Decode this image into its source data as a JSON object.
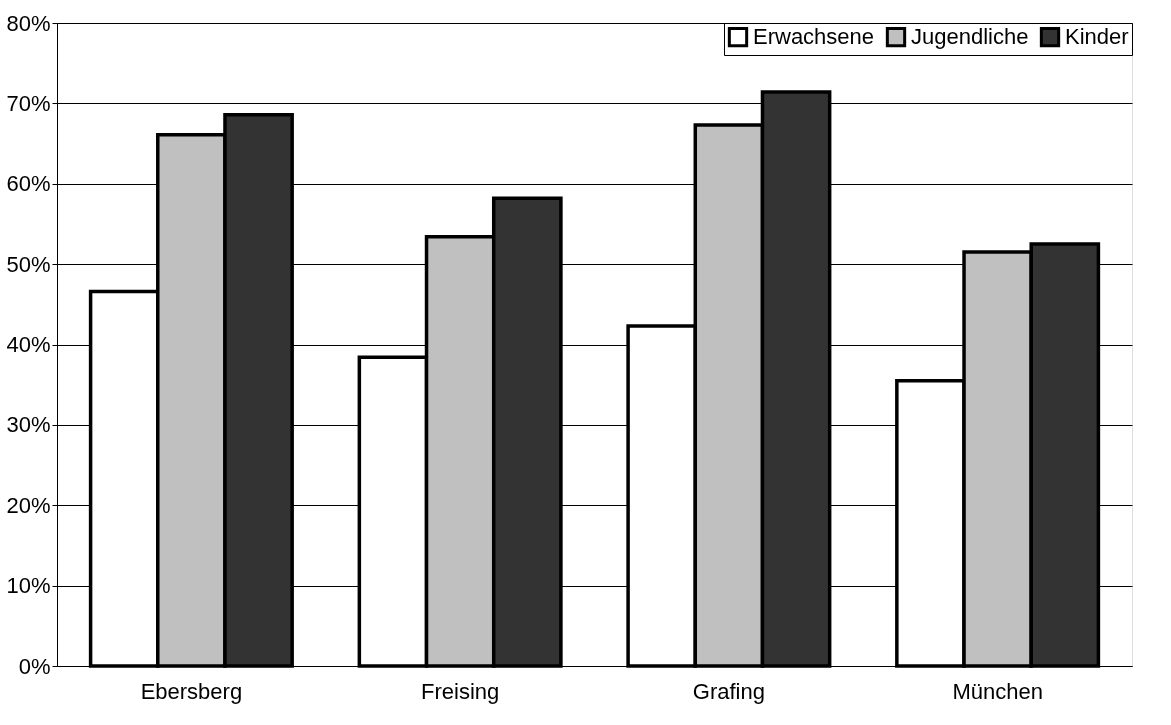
{
  "chart_data": {
    "type": "bar",
    "categories": [
      "Ebersberg",
      "Freising",
      "Grafing",
      "München"
    ],
    "series": [
      {
        "name": "Erwachsene",
        "color": "#ffffff",
        "values": [
          46.6,
          38.4,
          42.3,
          35.5
        ]
      },
      {
        "name": "Jugendliche",
        "color": "#c0c0c0",
        "values": [
          66.1,
          53.4,
          67.3,
          51.5
        ]
      },
      {
        "name": "Kinder",
        "color": "#333333",
        "values": [
          68.6,
          58.2,
          71.4,
          52.5
        ]
      }
    ],
    "ylim": [
      0,
      80
    ],
    "yticks": [
      {
        "value": 0,
        "label": "0%"
      },
      {
        "value": 10,
        "label": "10%"
      },
      {
        "value": 20,
        "label": "20%"
      },
      {
        "value": 30,
        "label": "30%"
      },
      {
        "value": 40,
        "label": "40%"
      },
      {
        "value": 50,
        "label": "50%"
      },
      {
        "value": 60,
        "label": "60%"
      },
      {
        "value": 70,
        "label": "70%"
      },
      {
        "value": 80,
        "label": "80%"
      }
    ],
    "grid": "y",
    "legend": "top right"
  }
}
